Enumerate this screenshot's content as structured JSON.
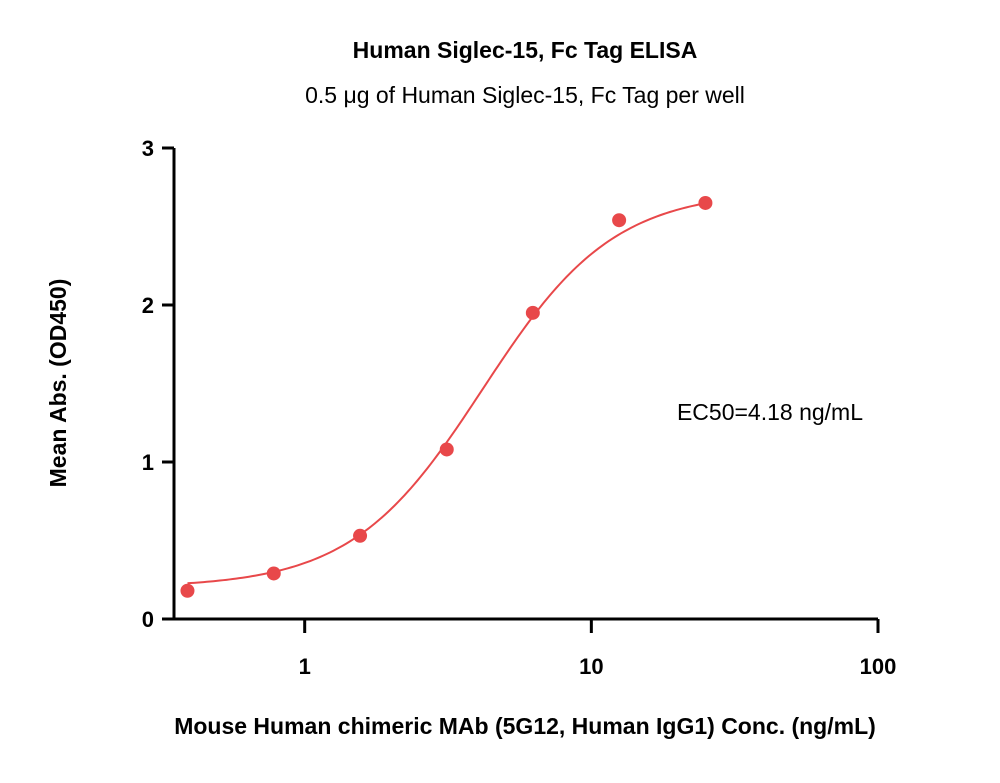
{
  "chart_data": {
    "type": "scatter",
    "title": "Human Siglec-15, Fc Tag ELISA",
    "subtitle": "0.5 μg of Human Siglec-15, Fc Tag per well",
    "xlabel": "Mouse Human chimeric MAb (5G12, Human IgG1) Conc. (ng/mL)",
    "ylabel": "Mean Abs. (OD450)",
    "x_scale": "log",
    "xlim": [
      0.35,
      100
    ],
    "ylim": [
      0,
      3
    ],
    "x_ticks": [
      {
        "value": 1,
        "label": "1"
      },
      {
        "value": 10,
        "label": "10"
      },
      {
        "value": 100,
        "label": "100"
      }
    ],
    "y_ticks": [
      {
        "value": 0,
        "label": "0"
      },
      {
        "value": 1,
        "label": "1"
      },
      {
        "value": 2,
        "label": "2"
      },
      {
        "value": 3,
        "label": "3"
      }
    ],
    "grid": false,
    "annotation": "EC50=4.18 ng/mL",
    "series": [
      {
        "color": "#e8484a",
        "points": [
          {
            "x": 0.39,
            "y": 0.18
          },
          {
            "x": 0.78,
            "y": 0.29
          },
          {
            "x": 1.56,
            "y": 0.53
          },
          {
            "x": 3.13,
            "y": 1.08
          },
          {
            "x": 6.25,
            "y": 1.95
          },
          {
            "x": 12.5,
            "y": 2.54
          },
          {
            "x": 25,
            "y": 2.65
          }
        ],
        "fit": {
          "model": "4PL",
          "bottom": 0.2,
          "top": 2.73,
          "ec50": 4.18,
          "hill": 1.9,
          "x_range": [
            0.39,
            25
          ]
        }
      }
    ]
  }
}
